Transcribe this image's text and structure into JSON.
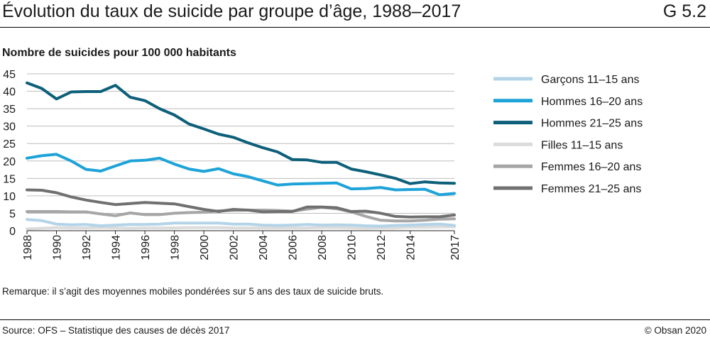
{
  "header": {
    "title": "Évolution du taux de suicide par groupe d’âge, 1988–2017",
    "code": "G 5.2"
  },
  "footer": {
    "remark": "Remarque: il s’agit des moyennes mobiles pondérées sur 5 ans des taux de suicide bruts.",
    "source": "Source: OFS – Statistique des causes de décès 2017",
    "copyright": "© Obsan 2020"
  },
  "chart_data": {
    "type": "line",
    "title": "",
    "ylabel": "Nombre de suicides pour 100 000 habitants",
    "xlabel": "",
    "ylim": [
      0,
      45
    ],
    "yticks": [
      0,
      5,
      10,
      15,
      20,
      25,
      30,
      35,
      40,
      45
    ],
    "xlim": [
      1988,
      2017
    ],
    "xticks": [
      1988,
      1990,
      1992,
      1994,
      1996,
      1998,
      2000,
      2002,
      2004,
      2006,
      2008,
      2010,
      2012,
      2014,
      2017
    ],
    "grid": "horizontal",
    "legend_position": "right",
    "x": [
      1988,
      1989,
      1990,
      1991,
      1992,
      1993,
      1994,
      1995,
      1996,
      1997,
      1998,
      1999,
      2000,
      2001,
      2002,
      2003,
      2004,
      2005,
      2006,
      2007,
      2008,
      2009,
      2010,
      2011,
      2012,
      2013,
      2014,
      2015,
      2016,
      2017
    ],
    "series": [
      {
        "name": "Garçons 11–15 ans",
        "color": "#b3d4e8",
        "values": [
          3.2,
          2.9,
          1.9,
          1.7,
          1.8,
          1.4,
          1.6,
          1.8,
          1.8,
          1.9,
          2.2,
          2.2,
          2.2,
          2.2,
          1.9,
          1.9,
          1.6,
          1.5,
          1.6,
          1.8,
          1.6,
          1.7,
          1.6,
          1.4,
          1.3,
          1.5,
          1.6,
          1.8,
          1.9,
          1.5
        ]
      },
      {
        "name": "Hommes 16–20 ans",
        "color": "#1ea3d8",
        "values": [
          20.8,
          21.5,
          21.9,
          20.0,
          17.6,
          17.1,
          18.6,
          20.0,
          20.2,
          20.8,
          19.1,
          17.7,
          17.0,
          17.8,
          16.3,
          15.5,
          14.3,
          13.1,
          13.4,
          13.5,
          13.6,
          13.7,
          12.0,
          12.1,
          12.4,
          11.7,
          11.8,
          11.9,
          10.3,
          10.7
        ]
      },
      {
        "name": "Hommes 21–25 ans",
        "color": "#0d5f7a",
        "values": [
          42.4,
          40.8,
          37.8,
          39.8,
          39.9,
          39.9,
          41.7,
          38.3,
          37.3,
          35.0,
          33.2,
          30.6,
          29.2,
          27.7,
          26.8,
          25.2,
          23.8,
          22.6,
          20.4,
          20.3,
          19.6,
          19.6,
          17.7,
          16.9,
          16.0,
          15.0,
          13.5,
          14.0,
          13.7,
          13.6
        ]
      },
      {
        "name": "Filles 11–15 ans",
        "color": "#dcdcdc",
        "values": [
          0.5,
          0.7,
          0.9,
          0.8,
          0.8,
          0.9,
          0.8,
          0.7,
          0.8,
          0.8,
          0.8,
          0.9,
          0.9,
          0.9,
          0.8,
          0.8,
          0.8,
          0.8,
          0.8,
          0.8,
          0.9,
          0.9,
          0.8,
          0.7,
          0.8,
          0.8,
          1.0,
          1.0,
          1.1,
          1.1
        ]
      },
      {
        "name": "Femmes 16–20 ans",
        "color": "#a6a6a6",
        "values": [
          5.5,
          5.5,
          5.5,
          5.4,
          5.4,
          4.8,
          4.3,
          5.1,
          4.6,
          4.6,
          5.0,
          5.2,
          5.3,
          5.7,
          5.8,
          5.9,
          5.9,
          5.8,
          5.6,
          6.2,
          6.7,
          6.3,
          5.4,
          4.1,
          3.0,
          2.8,
          2.8,
          3.0,
          3.3,
          3.4
        ]
      },
      {
        "name": "Femmes 21–25 ans",
        "color": "#707070",
        "values": [
          11.7,
          11.6,
          10.9,
          9.7,
          8.8,
          8.1,
          7.5,
          7.8,
          8.1,
          7.9,
          7.7,
          6.9,
          6.1,
          5.5,
          6.1,
          5.9,
          5.4,
          5.5,
          5.5,
          6.8,
          6.8,
          6.6,
          5.5,
          5.6,
          5.0,
          4.1,
          3.9,
          4.0,
          4.0,
          4.5
        ]
      }
    ]
  }
}
